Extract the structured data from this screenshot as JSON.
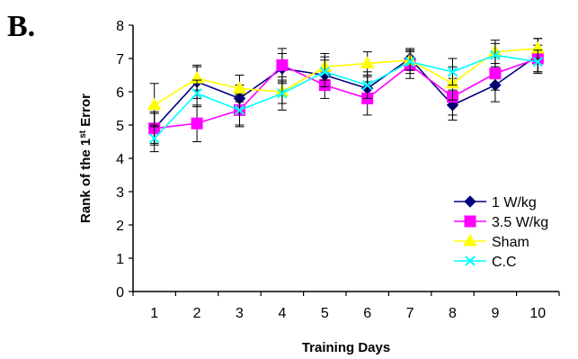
{
  "panel_label": "B.",
  "chart_data": {
    "type": "line",
    "xlabel": "Training Days",
    "ylabel": "Rank of the 1st Error",
    "ylim": [
      0,
      8
    ],
    "yticks": [
      0,
      1,
      2,
      3,
      4,
      5,
      6,
      7,
      8
    ],
    "x": [
      1,
      2,
      3,
      4,
      5,
      6,
      7,
      8,
      9,
      10
    ],
    "legend_position": "bottom-right",
    "series": [
      {
        "name": "1 W/kg",
        "color": "#000080",
        "marker": "diamond",
        "values": [
          4.9,
          6.3,
          5.8,
          6.7,
          6.5,
          6.1,
          7.0,
          5.6,
          6.2,
          7.1
        ],
        "errors": [
          0.45,
          0.5,
          0.4,
          0.45,
          0.45,
          0.35,
          0.3,
          0.45,
          0.5,
          0.5
        ]
      },
      {
        "name": "3.5 W/kg",
        "color": "#ff00ff",
        "marker": "square",
        "values": [
          4.9,
          5.05,
          5.45,
          6.8,
          6.2,
          5.8,
          6.8,
          5.85,
          6.55,
          7.0
        ],
        "errors": [
          0.5,
          0.55,
          0.5,
          0.5,
          0.4,
          0.5,
          0.4,
          0.55,
          0.5,
          0.4
        ]
      },
      {
        "name": "Sham",
        "color": "#ffff00",
        "marker": "triangle",
        "values": [
          5.6,
          6.4,
          6.1,
          6.0,
          6.75,
          6.85,
          6.95,
          6.25,
          7.2,
          7.3
        ],
        "errors": [
          0.65,
          0.35,
          0.4,
          0.35,
          0.4,
          0.35,
          0.3,
          0.5,
          0.35,
          0.3
        ]
      },
      {
        "name": "C.C",
        "color": "#00ffff",
        "marker": "x",
        "values": [
          4.6,
          5.95,
          5.45,
          5.95,
          6.6,
          6.2,
          6.9,
          6.6,
          7.1,
          6.9
        ],
        "errors": [
          0.4,
          0.4,
          0.45,
          0.5,
          0.45,
          0.4,
          0.35,
          0.4,
          0.35,
          0.35
        ]
      }
    ]
  }
}
